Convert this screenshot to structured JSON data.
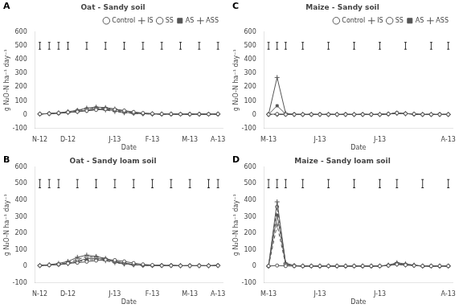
{
  "chart_data": [
    {
      "type": "line",
      "panel_label": "A",
      "title": "Oat - Sandy soil",
      "x_label": "Date",
      "y_label": "g N₂O-N ha⁻¹ day⁻¹",
      "categories": [
        "N-12",
        null,
        null,
        "D-12",
        null,
        null,
        null,
        null,
        "J-13",
        null,
        null,
        null,
        "F-13",
        null,
        null,
        null,
        "M-13",
        null,
        null,
        "A-13"
      ],
      "series": [
        {
          "name": "Control",
          "color": "#555555",
          "marker": "circle",
          "line_style": "solid",
          "values": [
            5,
            8,
            12,
            18,
            22,
            28,
            35,
            40,
            38,
            30,
            20,
            12,
            8,
            5,
            5,
            4,
            4,
            4,
            4,
            5
          ]
        },
        {
          "name": "IS",
          "color": "#555555",
          "marker": "plus",
          "line_style": "solid",
          "values": [
            5,
            8,
            14,
            22,
            32,
            48,
            55,
            52,
            42,
            28,
            16,
            10,
            7,
            5,
            5,
            4,
            4,
            4,
            4,
            5
          ]
        },
        {
          "name": "SS",
          "color": "#555555",
          "marker": "circle",
          "line_style": "dashed",
          "values": [
            5,
            8,
            12,
            20,
            30,
            42,
            50,
            46,
            36,
            22,
            13,
            8,
            5,
            5,
            5,
            4,
            4,
            4,
            4,
            5
          ]
        },
        {
          "name": "AS",
          "color": "#555555",
          "marker": "square",
          "line_style": "solid",
          "values": [
            5,
            8,
            10,
            16,
            24,
            34,
            43,
            39,
            29,
            18,
            11,
            7,
            5,
            5,
            5,
            4,
            4,
            4,
            4,
            5
          ]
        },
        {
          "name": "ASS",
          "color": "#555555",
          "marker": "plus",
          "line_style": "dashed",
          "values": [
            5,
            8,
            10,
            15,
            21,
            30,
            39,
            34,
            23,
            14,
            9,
            6,
            5,
            5,
            5,
            4,
            4,
            4,
            4,
            5
          ]
        }
      ],
      "error_bars": {
        "values": [
          500,
          500,
          500,
          500,
          null,
          500,
          null,
          500,
          null,
          500,
          null,
          500,
          null,
          500,
          null,
          500,
          null,
          500,
          null,
          500
        ],
        "errors": [
          25,
          25,
          25,
          25,
          null,
          25,
          null,
          25,
          null,
          25,
          null,
          25,
          null,
          25,
          null,
          25,
          null,
          25,
          null,
          25
        ]
      },
      "ylim": [
        -100,
        600
      ],
      "yticks": [
        -100,
        0,
        100,
        200,
        300,
        400,
        500,
        600
      ],
      "grid": false,
      "legend": "upper right"
    },
    {
      "type": "line",
      "panel_label": "C",
      "title": "Maize - Sandy soil",
      "x_label": "Date",
      "y_label": "g N₂O-N ha⁻¹ day⁻¹",
      "categories": [
        "M-13",
        null,
        null,
        null,
        null,
        null,
        "J-13",
        null,
        null,
        null,
        null,
        null,
        null,
        "J-13",
        null,
        null,
        null,
        null,
        null,
        null,
        null,
        "A-13"
      ],
      "series": [
        {
          "name": "Control",
          "color": "#555555",
          "marker": "circle",
          "line_style": "solid",
          "values": [
            2,
            5,
            2,
            2,
            2,
            2,
            2,
            2,
            2,
            2,
            2,
            2,
            2,
            2,
            5,
            12,
            8,
            5,
            2,
            2,
            2,
            2
          ]
        },
        {
          "name": "IS",
          "color": "#555555",
          "marker": "plus",
          "line_style": "solid",
          "values": [
            2,
            270,
            10,
            2,
            2,
            2,
            2,
            2,
            2,
            2,
            2,
            2,
            2,
            2,
            5,
            12,
            8,
            5,
            2,
            2,
            2,
            2
          ]
        },
        {
          "name": "SS",
          "color": "#555555",
          "marker": "circle",
          "line_style": "dashed",
          "values": [
            2,
            2,
            2,
            2,
            2,
            2,
            2,
            2,
            2,
            2,
            2,
            2,
            2,
            2,
            6,
            14,
            9,
            5,
            2,
            2,
            2,
            2
          ]
        },
        {
          "name": "AS",
          "color": "#555555",
          "marker": "square",
          "line_style": "solid",
          "values": [
            2,
            65,
            5,
            2,
            2,
            2,
            2,
            2,
            2,
            2,
            2,
            2,
            2,
            2,
            5,
            12,
            8,
            5,
            2,
            2,
            2,
            2
          ]
        },
        {
          "name": "ASS",
          "color": "#555555",
          "marker": "plus",
          "line_style": "dashed",
          "values": [
            2,
            2,
            2,
            2,
            2,
            2,
            2,
            2,
            2,
            2,
            2,
            2,
            2,
            2,
            5,
            10,
            7,
            4,
            2,
            2,
            2,
            2
          ]
        }
      ],
      "error_bars": {
        "values": [
          500,
          500,
          500,
          null,
          500,
          null,
          null,
          500,
          null,
          null,
          500,
          null,
          null,
          500,
          null,
          null,
          500,
          null,
          null,
          500,
          null,
          500
        ],
        "errors": [
          25,
          25,
          25,
          null,
          25,
          null,
          null,
          25,
          null,
          null,
          25,
          null,
          null,
          25,
          null,
          null,
          25,
          null,
          null,
          25,
          null,
          25
        ]
      },
      "ylim": [
        -100,
        600
      ],
      "yticks": [
        -100,
        0,
        100,
        200,
        300,
        400,
        500,
        600
      ],
      "grid": false,
      "legend": "upper right"
    },
    {
      "type": "line",
      "panel_label": "B",
      "title": "Oat - Sandy loam soil",
      "x_label": "Date",
      "y_label": "g N₂O-N ha⁻¹ day⁻¹",
      "categories": [
        "N-12",
        null,
        null,
        "D-12",
        null,
        null,
        null,
        null,
        "J-13",
        null,
        null,
        null,
        "F-13",
        null,
        null,
        null,
        "M-13",
        null,
        null,
        "A-13"
      ],
      "series": [
        {
          "name": "Control",
          "color": "#555555",
          "marker": "circle",
          "line_style": "solid",
          "values": [
            5,
            8,
            12,
            18,
            22,
            28,
            35,
            40,
            38,
            30,
            20,
            12,
            8,
            5,
            5,
            4,
            4,
            4,
            4,
            5
          ]
        },
        {
          "name": "IS",
          "color": "#555555",
          "marker": "plus",
          "line_style": "solid",
          "values": [
            5,
            10,
            18,
            30,
            55,
            68,
            60,
            48,
            32,
            20,
            12,
            8,
            6,
            5,
            5,
            4,
            4,
            4,
            4,
            5
          ]
        },
        {
          "name": "SS",
          "color": "#555555",
          "marker": "circle",
          "line_style": "dashed",
          "values": [
            5,
            8,
            14,
            24,
            42,
            58,
            55,
            44,
            30,
            18,
            11,
            7,
            5,
            5,
            5,
            4,
            4,
            4,
            4,
            5
          ]
        },
        {
          "name": "AS",
          "color": "#555555",
          "marker": "square",
          "line_style": "solid",
          "values": [
            5,
            8,
            10,
            18,
            32,
            46,
            50,
            40,
            26,
            16,
            10,
            7,
            5,
            5,
            5,
            4,
            4,
            4,
            4,
            5
          ]
        },
        {
          "name": "ASS",
          "color": "#555555",
          "marker": "plus",
          "line_style": "dashed",
          "values": [
            5,
            8,
            10,
            16,
            28,
            38,
            42,
            34,
            22,
            14,
            9,
            6,
            5,
            5,
            5,
            4,
            4,
            4,
            4,
            5
          ]
        }
      ],
      "error_bars": {
        "values": [
          500,
          500,
          500,
          null,
          500,
          null,
          500,
          null,
          500,
          null,
          500,
          null,
          500,
          null,
          500,
          null,
          500,
          null,
          500,
          500
        ],
        "errors": [
          25,
          25,
          25,
          null,
          25,
          null,
          25,
          null,
          25,
          null,
          25,
          null,
          25,
          null,
          25,
          null,
          25,
          null,
          25,
          25
        ]
      },
      "ylim": [
        -100,
        600
      ],
      "yticks": [
        -100,
        0,
        100,
        200,
        300,
        400,
        500,
        600
      ],
      "grid": false,
      "legend": false
    },
    {
      "type": "line",
      "panel_label": "D",
      "title": "Maize - Sandy loam soil",
      "x_label": "Date",
      "y_label": "g N₂O-N ha⁻¹ day⁻¹",
      "categories": [
        "M-13",
        null,
        null,
        null,
        null,
        null,
        "J-13",
        null,
        null,
        null,
        null,
        null,
        null,
        "J-13",
        null,
        null,
        null,
        null,
        null,
        null,
        null,
        "A-13"
      ],
      "series": [
        {
          "name": "Control",
          "color": "#555555",
          "marker": "circle",
          "line_style": "solid",
          "values": [
            2,
            5,
            2,
            2,
            2,
            2,
            2,
            2,
            2,
            2,
            2,
            2,
            2,
            2,
            5,
            12,
            8,
            5,
            2,
            2,
            2,
            2
          ]
        },
        {
          "name": "IS",
          "color": "#555555",
          "marker": "plus",
          "line_style": "solid",
          "values": [
            2,
            390,
            20,
            5,
            2,
            2,
            2,
            2,
            2,
            2,
            2,
            2,
            2,
            2,
            8,
            22,
            15,
            8,
            2,
            2,
            2,
            2
          ]
        },
        {
          "name": "SS",
          "color": "#555555",
          "marker": "circle",
          "line_style": "dashed",
          "values": [
            2,
            360,
            15,
            4,
            2,
            2,
            2,
            2,
            2,
            2,
            2,
            2,
            2,
            2,
            6,
            18,
            12,
            6,
            2,
            2,
            2,
            2
          ]
        },
        {
          "name": "AS",
          "color": "#555555",
          "marker": "square",
          "line_style": "solid",
          "values": [
            2,
            310,
            12,
            3,
            2,
            2,
            2,
            2,
            2,
            2,
            2,
            2,
            2,
            2,
            5,
            15,
            10,
            5,
            2,
            2,
            2,
            2
          ]
        },
        {
          "name": "ASS",
          "color": "#555555",
          "marker": "plus",
          "line_style": "dashed",
          "values": [
            2,
            250,
            10,
            3,
            2,
            2,
            2,
            2,
            2,
            2,
            2,
            2,
            2,
            2,
            5,
            12,
            8,
            5,
            2,
            2,
            2,
            2
          ]
        }
      ],
      "error_bars": {
        "values": [
          500,
          500,
          500,
          null,
          500,
          null,
          null,
          500,
          null,
          null,
          500,
          null,
          null,
          500,
          null,
          500,
          null,
          null,
          500,
          null,
          null,
          500
        ],
        "errors": [
          25,
          25,
          25,
          null,
          25,
          null,
          null,
          25,
          null,
          null,
          25,
          null,
          null,
          25,
          null,
          25,
          null,
          null,
          25,
          null,
          null,
          25
        ]
      },
      "ylim": [
        -100,
        600
      ],
      "yticks": [
        -100,
        0,
        100,
        200,
        300,
        400,
        500,
        600
      ],
      "grid": false,
      "legend": false
    }
  ]
}
